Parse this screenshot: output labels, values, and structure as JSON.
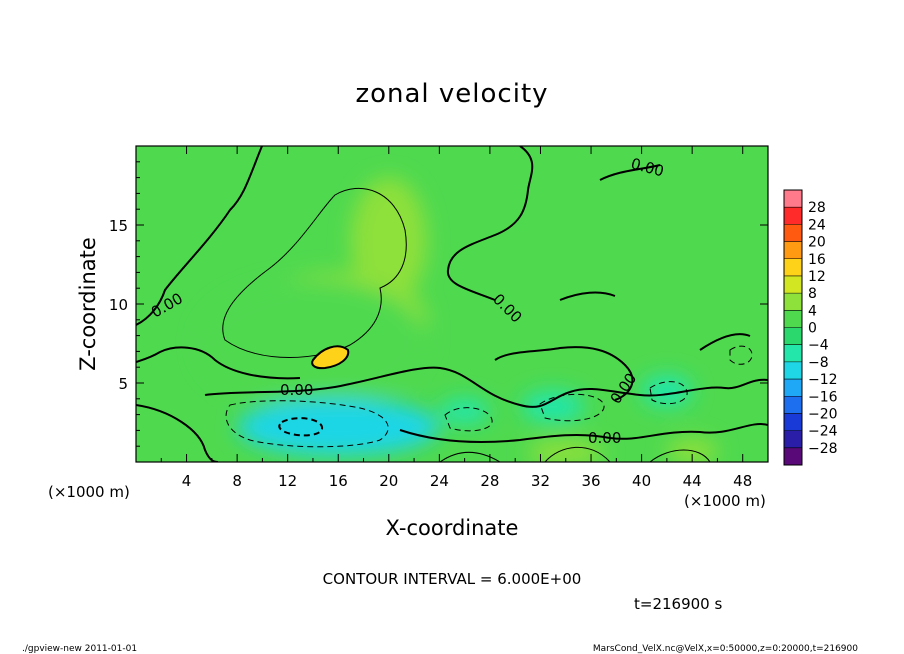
{
  "chart_data": {
    "type": "heatmap",
    "title": "zonal velocity",
    "xlabel": "X-coordinate",
    "ylabel": "Z-coordinate",
    "x_unit": "(×1000 m)",
    "y_unit": "(×1000 m)",
    "x_ticks": [
      4,
      8,
      12,
      16,
      20,
      24,
      28,
      32,
      36,
      40,
      44,
      48
    ],
    "y_ticks": [
      5,
      10,
      15
    ],
    "xlim": [
      0,
      50
    ],
    "ylim": [
      0,
      20
    ],
    "colorbar_levels": [
      28,
      24,
      20,
      16,
      12,
      8,
      4,
      0,
      -4,
      -8,
      -12,
      -16,
      -20,
      -24,
      -28
    ],
    "contour_labels": [
      "0.00",
      "0.00",
      "0.00",
      "0.00",
      "0.00",
      "0.00",
      "0.00"
    ],
    "field_blobs": [
      {
        "x": 20,
        "y": 14,
        "rx": 3,
        "ry": 4,
        "value": 7
      },
      {
        "x": 16,
        "y": 9,
        "rx": 7,
        "ry": 3,
        "value": 8
      },
      {
        "x": 15.5,
        "y": 6.7,
        "rx": 1.5,
        "ry": 0.6,
        "value": 11
      },
      {
        "x": 14,
        "y": 7.5,
        "rx": 9,
        "ry": 4,
        "value": 5
      },
      {
        "x": 16,
        "y": 2.2,
        "rx": 8,
        "ry": 1.8,
        "value": -7
      },
      {
        "x": 15,
        "y": 2.3,
        "rx": 2.5,
        "ry": 0.7,
        "value": -10
      },
      {
        "x": 33,
        "y": 3.5,
        "rx": 2.5,
        "ry": 1,
        "value": -5
      },
      {
        "x": 26,
        "y": 3.2,
        "rx": 2,
        "ry": 0.8,
        "value": -4
      },
      {
        "x": 42,
        "y": 4.5,
        "rx": 2,
        "ry": 1,
        "value": -4
      },
      {
        "x": 34,
        "y": 0.6,
        "rx": 3,
        "ry": 0.8,
        "value": 9
      },
      {
        "x": 44,
        "y": 0.7,
        "rx": 2,
        "ry": 0.8,
        "value": 6
      }
    ],
    "contour_interval": "CONTOUR INTERVAL = 6.000E+00",
    "time": "t=216900 s"
  },
  "footer": {
    "left": "./gpview-new  2011-01-01",
    "right": "MarsCond_VelX.nc@VelX,x=0:50000,z=0:20000,t=216900"
  }
}
